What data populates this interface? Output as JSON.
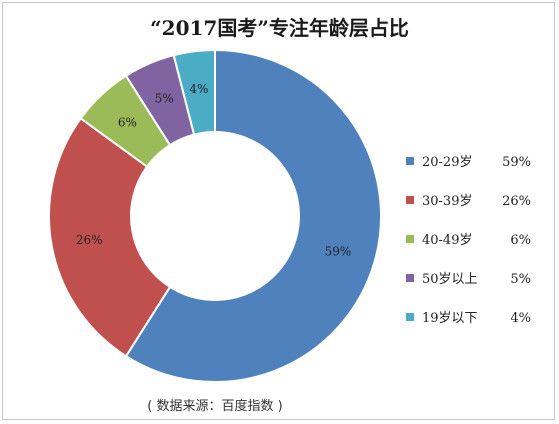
{
  "chart_data": {
    "type": "pie",
    "title": "“2017国考”专注年龄层占比",
    "categories": [
      "20-29岁",
      "30-39岁",
      "40-49岁",
      "50岁以上",
      "19岁以下"
    ],
    "values": [
      59,
      26,
      6,
      5,
      4
    ],
    "data_labels": [
      "59%",
      "26%",
      "6%",
      "5%",
      "4%"
    ],
    "colors": [
      "#4f81bd",
      "#c0504d",
      "#9bbb59",
      "#8064a2",
      "#4bacc6"
    ],
    "donut": true,
    "legend_placement": "right"
  },
  "source_note": "( 数据来源：百度指数 )"
}
